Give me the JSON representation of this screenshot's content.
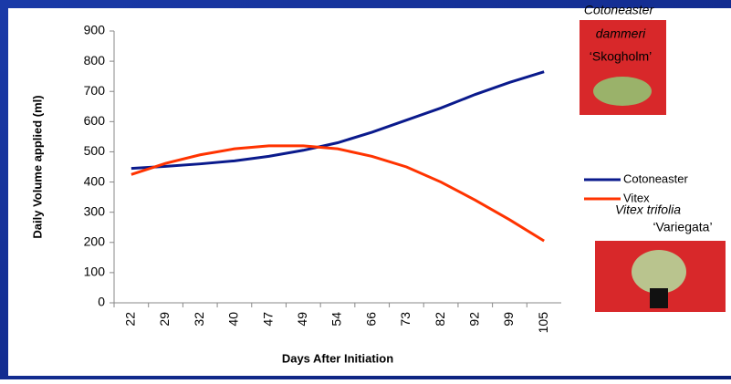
{
  "chart_data": {
    "type": "line",
    "x_label": "Days After Initiation",
    "y_label": "Daily Volume applied (ml)",
    "categories": [
      "22",
      "29",
      "32",
      "40",
      "47",
      "49",
      "54",
      "66",
      "73",
      "82",
      "92",
      "99",
      "105"
    ],
    "series": [
      {
        "name": "Cotoneaster",
        "color": "#0a1a8c",
        "values": [
          445,
          452,
          460,
          470,
          485,
          505,
          530,
          565,
          605,
          645,
          690,
          730,
          765
        ]
      },
      {
        "name": "Vitex",
        "color": "#ff3300",
        "values": [
          425,
          462,
          490,
          510,
          520,
          520,
          510,
          485,
          450,
          400,
          340,
          275,
          205
        ]
      }
    ],
    "ylim": [
      0,
      900
    ],
    "yticks": [
      0,
      100,
      200,
      300,
      400,
      500,
      600,
      700,
      800,
      900
    ],
    "legend": "right",
    "photos": [
      {
        "caption_lines": [
          "Cotoneaster",
          "dammeri",
          "‘Skogholm’"
        ]
      },
      {
        "caption_lines": [
          "Vitex trifolia",
          "‘Variegata’"
        ]
      }
    ]
  }
}
